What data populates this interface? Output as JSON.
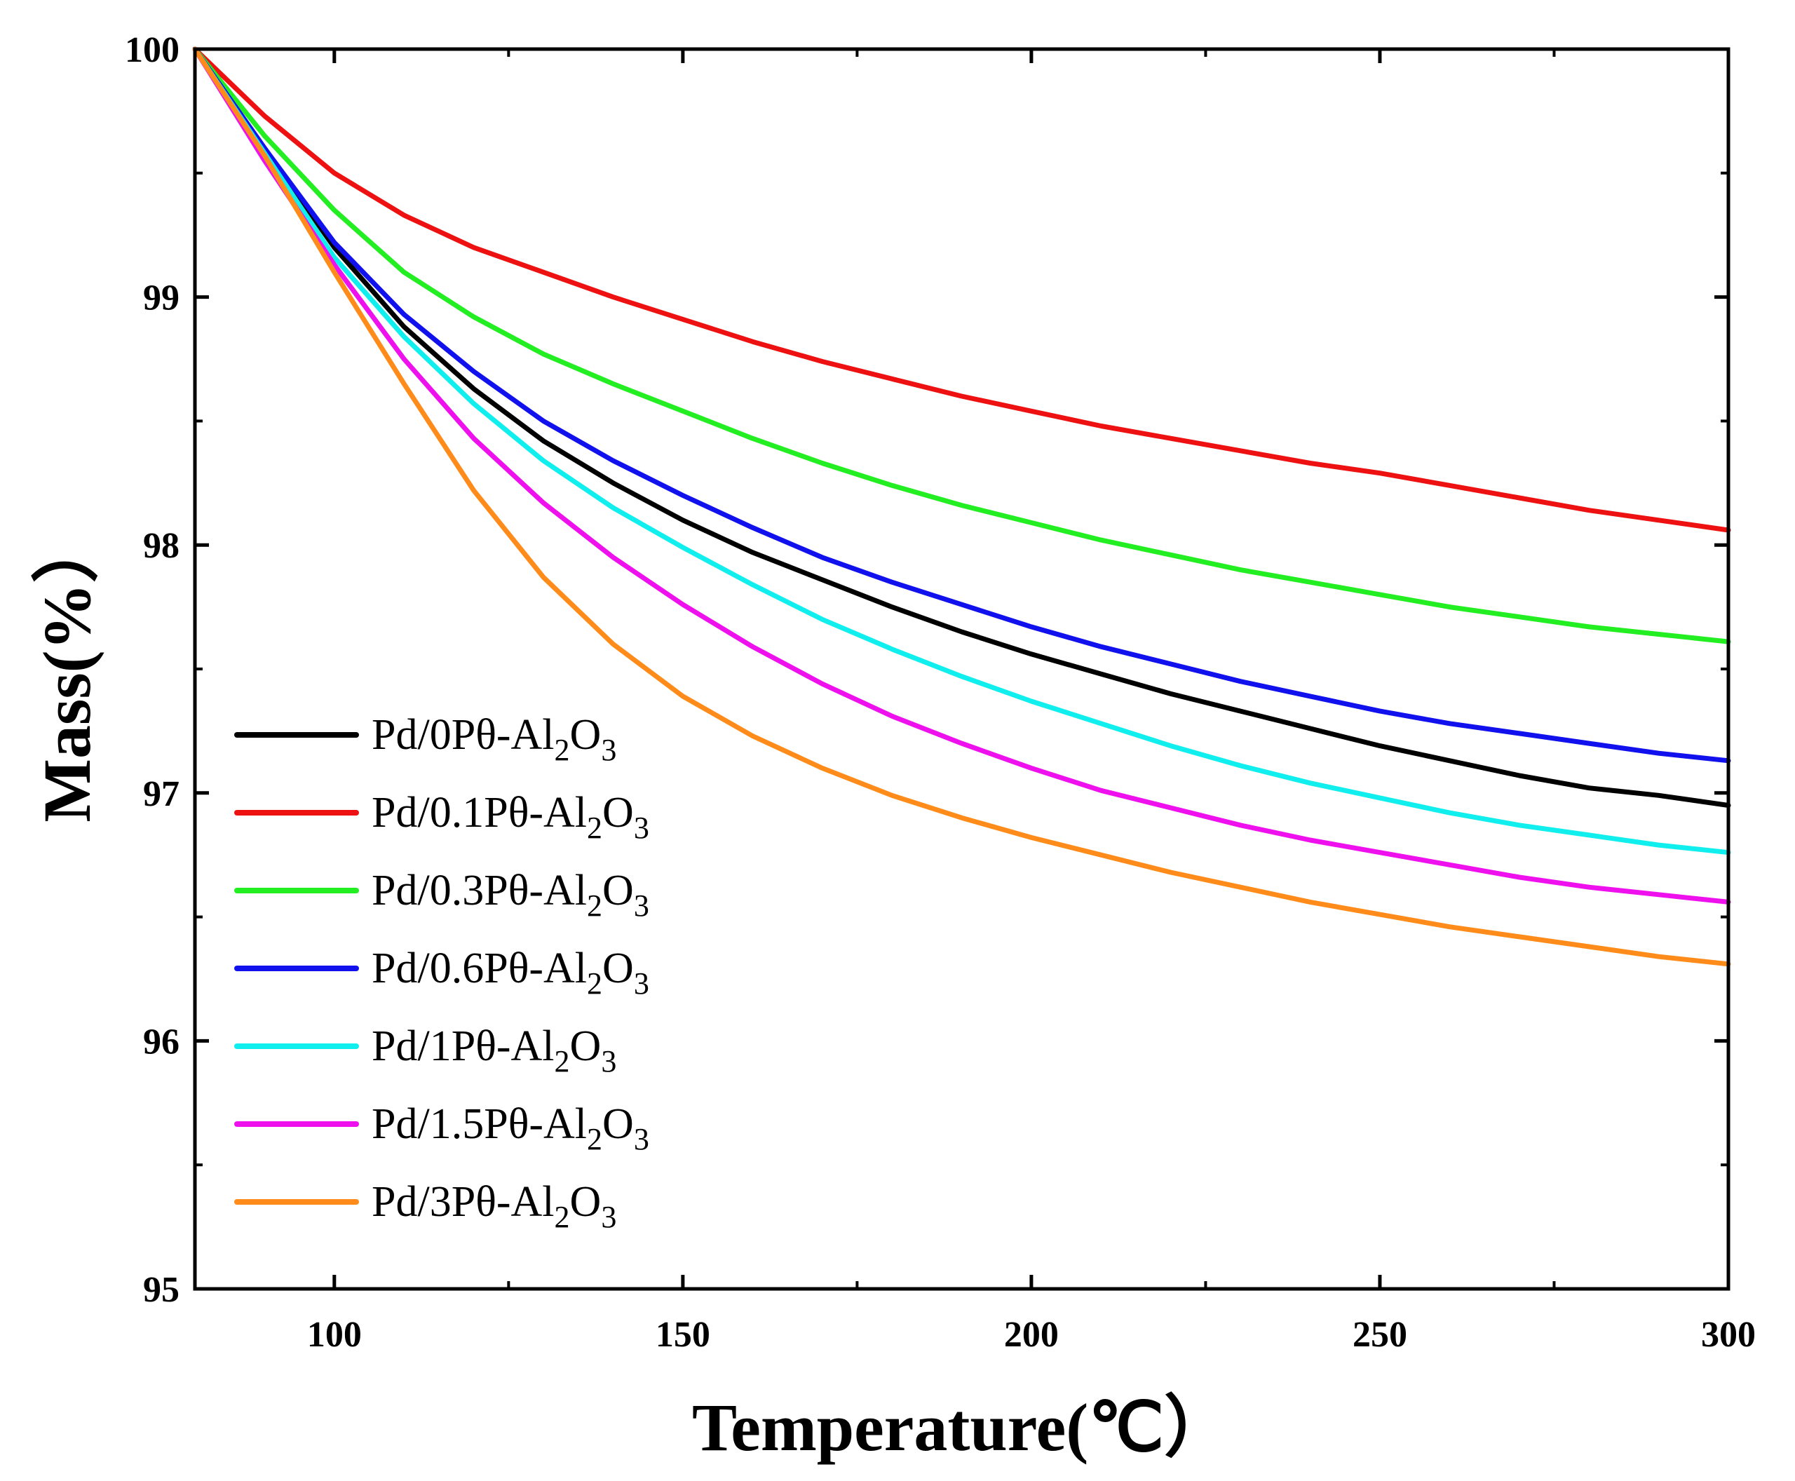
{
  "chart_data": {
    "type": "line",
    "title": "",
    "xlabel": "Temperature(℃）",
    "ylabel": "Mass(%）",
    "xlim": [
      80,
      300
    ],
    "ylim": [
      95,
      100
    ],
    "xticks": [
      "100",
      "150",
      "200",
      "250",
      "300"
    ],
    "yticks": [
      "95",
      "96",
      "97",
      "98",
      "99",
      "100"
    ],
    "grid": false,
    "legend_position": "bottom-left",
    "series": [
      {
        "name": "Pd/0Pθ-Al",
        "sub1": "2",
        "mid": "O",
        "sub2": "3",
        "color": "#000000",
        "x": [
          80,
          90,
          100,
          110,
          120,
          130,
          140,
          150,
          160,
          170,
          180,
          190,
          200,
          210,
          220,
          230,
          240,
          250,
          260,
          270,
          280,
          290,
          300
        ],
        "y": [
          100.0,
          99.6,
          99.2,
          98.88,
          98.63,
          98.42,
          98.25,
          98.1,
          97.97,
          97.86,
          97.75,
          97.65,
          97.56,
          97.48,
          97.4,
          97.33,
          97.26,
          97.19,
          97.13,
          97.07,
          97.02,
          96.99,
          96.95
        ]
      },
      {
        "name": "Pd/0.1Pθ-Al",
        "sub1": "2",
        "mid": "O",
        "sub2": "3",
        "color": "#ee1111",
        "x": [
          80,
          90,
          100,
          110,
          120,
          130,
          140,
          150,
          160,
          170,
          180,
          190,
          200,
          210,
          220,
          230,
          240,
          250,
          260,
          270,
          280,
          290,
          300
        ],
        "y": [
          100.0,
          99.73,
          99.5,
          99.33,
          99.2,
          99.1,
          99.0,
          98.91,
          98.82,
          98.74,
          98.67,
          98.6,
          98.54,
          98.48,
          98.43,
          98.38,
          98.33,
          98.29,
          98.24,
          98.19,
          98.14,
          98.1,
          98.06
        ]
      },
      {
        "name": "Pd/0.3Pθ-Al",
        "sub1": "2",
        "mid": "O",
        "sub2": "3",
        "color": "#22ee22",
        "x": [
          80,
          90,
          100,
          110,
          120,
          130,
          140,
          150,
          160,
          170,
          180,
          190,
          200,
          210,
          220,
          230,
          240,
          250,
          260,
          270,
          280,
          290,
          300
        ],
        "y": [
          100.0,
          99.65,
          99.35,
          99.1,
          98.92,
          98.77,
          98.65,
          98.54,
          98.43,
          98.33,
          98.24,
          98.16,
          98.09,
          98.02,
          97.96,
          97.9,
          97.85,
          97.8,
          97.75,
          97.71,
          97.67,
          97.64,
          97.61
        ]
      },
      {
        "name": "Pd/0.6Pθ-Al",
        "sub1": "2",
        "mid": "O",
        "sub2": "3",
        "color": "#1111ee",
        "x": [
          80,
          90,
          100,
          110,
          120,
          130,
          140,
          150,
          160,
          170,
          180,
          190,
          200,
          210,
          220,
          230,
          240,
          250,
          260,
          270,
          280,
          290,
          300
        ],
        "y": [
          100.0,
          99.6,
          99.22,
          98.93,
          98.7,
          98.5,
          98.34,
          98.2,
          98.07,
          97.95,
          97.85,
          97.76,
          97.67,
          97.59,
          97.52,
          97.45,
          97.39,
          97.33,
          97.28,
          97.24,
          97.2,
          97.16,
          97.13
        ]
      },
      {
        "name": "Pd/1Pθ-Al",
        "sub1": "2",
        "mid": "O",
        "sub2": "3",
        "color": "#11eeee",
        "x": [
          80,
          90,
          100,
          110,
          120,
          130,
          140,
          150,
          160,
          170,
          180,
          190,
          200,
          210,
          220,
          230,
          240,
          250,
          260,
          270,
          280,
          290,
          300
        ],
        "y": [
          100.0,
          99.58,
          99.16,
          98.84,
          98.57,
          98.34,
          98.15,
          97.99,
          97.84,
          97.7,
          97.58,
          97.47,
          97.37,
          97.28,
          97.19,
          97.11,
          97.04,
          96.98,
          96.92,
          96.87,
          96.83,
          96.79,
          96.76
        ]
      },
      {
        "name": "Pd/1.5Pθ-Al",
        "sub1": "2",
        "mid": "O",
        "sub2": "3",
        "color": "#ee11ee",
        "x": [
          80,
          90,
          100,
          110,
          120,
          130,
          140,
          150,
          160,
          170,
          180,
          190,
          200,
          210,
          220,
          230,
          240,
          250,
          260,
          270,
          280,
          290,
          300
        ],
        "y": [
          100.0,
          99.55,
          99.13,
          98.75,
          98.43,
          98.17,
          97.95,
          97.76,
          97.59,
          97.44,
          97.31,
          97.2,
          97.1,
          97.01,
          96.94,
          96.87,
          96.81,
          96.76,
          96.71,
          96.66,
          96.62,
          96.59,
          96.56
        ]
      },
      {
        "name": "Pd/3Pθ-Al",
        "sub1": "2",
        "mid": "O",
        "sub2": "3",
        "color": "#ff8c1a",
        "x": [
          80,
          90,
          100,
          110,
          120,
          130,
          140,
          150,
          160,
          170,
          180,
          190,
          200,
          210,
          220,
          230,
          240,
          250,
          260,
          270,
          280,
          290,
          300
        ],
        "y": [
          100.0,
          99.57,
          99.1,
          98.65,
          98.22,
          97.87,
          97.6,
          97.39,
          97.23,
          97.1,
          96.99,
          96.9,
          96.82,
          96.75,
          96.68,
          96.62,
          96.56,
          96.51,
          96.46,
          96.42,
          96.38,
          96.34,
          96.31
        ]
      }
    ]
  }
}
